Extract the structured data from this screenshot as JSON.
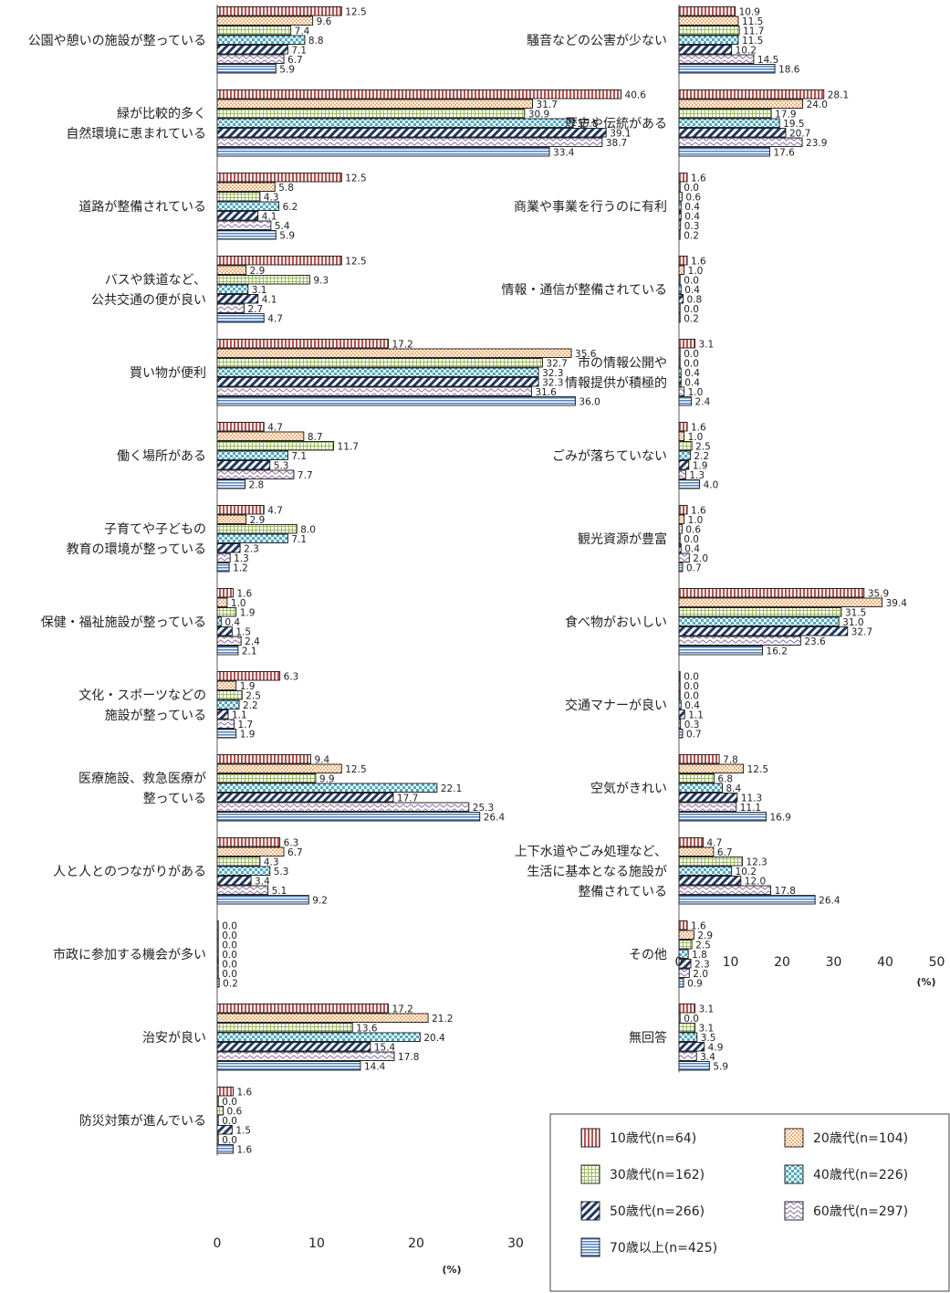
{
  "chart_data": {
    "type": "bar",
    "orientation": "horizontal",
    "unit": "(%)",
    "xlim": [
      0,
      50
    ],
    "ticks": [
      "0",
      "10",
      "20",
      "30",
      "40",
      "50"
    ],
    "series": [
      {
        "name": "10歳代(n=64)",
        "color": "#c0504d",
        "pattern": "vstripe-red"
      },
      {
        "name": "20歳代(n=104)",
        "color": "#f79646",
        "pattern": "dots-orange"
      },
      {
        "name": "30歳代(n=162)",
        "color": "#9bbb59",
        "pattern": "grid-green"
      },
      {
        "name": "40歳代(n=226)",
        "color": "#4bacc6",
        "pattern": "checker-cyan"
      },
      {
        "name": "50歳代(n=266)",
        "color": "#1f3864",
        "pattern": "diag-navy"
      },
      {
        "name": "60歳代(n=297)",
        "color": "#8064a2",
        "pattern": "wave-purple"
      },
      {
        "name": "70歳以上(n=425)",
        "color": "#4f81bd",
        "pattern": "hstripe-blue"
      }
    ],
    "panels": [
      {
        "categories": [
          {
            "label": [
              "公園や憩いの施設が整っている"
            ],
            "values": [
              12.5,
              9.6,
              7.4,
              8.8,
              7.1,
              6.7,
              5.9
            ]
          },
          {
            "label": [
              "緑が比較的多く",
              "自然環境に恵まれている"
            ],
            "values": [
              40.6,
              31.7,
              30.9,
              35.8,
              39.1,
              38.7,
              33.4
            ]
          },
          {
            "label": [
              "道路が整備されている"
            ],
            "values": [
              12.5,
              5.8,
              4.3,
              6.2,
              4.1,
              5.4,
              5.9
            ]
          },
          {
            "label": [
              "バスや鉄道など、",
              "公共交通の便が良い"
            ],
            "values": [
              12.5,
              2.9,
              9.3,
              3.1,
              4.1,
              2.7,
              4.7
            ]
          },
          {
            "label": [
              "買い物が便利"
            ],
            "values": [
              17.2,
              35.6,
              32.7,
              32.3,
              32.3,
              31.6,
              36.0
            ]
          },
          {
            "label": [
              "働く場所がある"
            ],
            "values": [
              4.7,
              8.7,
              11.7,
              7.1,
              5.3,
              7.7,
              2.8
            ]
          },
          {
            "label": [
              "子育てや子どもの",
              "教育の環境が整っている"
            ],
            "values": [
              4.7,
              2.9,
              8.0,
              7.1,
              2.3,
              1.3,
              1.2
            ]
          },
          {
            "label": [
              "保健・福祉施設が整っている"
            ],
            "values": [
              1.6,
              1.0,
              1.9,
              0.4,
              1.5,
              2.4,
              2.1
            ]
          },
          {
            "label": [
              "文化・スポーツなどの",
              "施設が整っている"
            ],
            "values": [
              6.3,
              1.9,
              2.5,
              2.2,
              1.1,
              1.7,
              1.9
            ]
          },
          {
            "label": [
              "医療施設、救急医療が",
              "整っている"
            ],
            "values": [
              9.4,
              12.5,
              9.9,
              22.1,
              17.7,
              25.3,
              26.4
            ]
          },
          {
            "label": [
              "人と人とのつながりがある"
            ],
            "values": [
              6.3,
              6.7,
              4.3,
              5.3,
              3.4,
              5.1,
              9.2
            ]
          },
          {
            "label": [
              "市政に参加する機会が多い"
            ],
            "values": [
              0.0,
              0.0,
              0.0,
              0.0,
              0.0,
              0.0,
              0.2
            ]
          },
          {
            "label": [
              "治安が良い"
            ],
            "values": [
              17.2,
              21.2,
              13.6,
              20.4,
              15.4,
              17.8,
              14.4
            ]
          },
          {
            "label": [
              "防災対策が進んでいる"
            ],
            "values": [
              1.6,
              0.0,
              0.6,
              0.0,
              1.5,
              0.0,
              1.6
            ]
          }
        ]
      },
      {
        "categories": [
          {
            "label": [
              "騒音などの公害が少ない"
            ],
            "values": [
              10.9,
              11.5,
              11.7,
              11.5,
              10.2,
              14.5,
              18.6
            ]
          },
          {
            "label": [
              "歴史や伝統がある"
            ],
            "values": [
              28.1,
              24.0,
              17.9,
              19.5,
              20.7,
              23.9,
              17.6
            ]
          },
          {
            "label": [
              "商業や事業を行うのに有利"
            ],
            "values": [
              1.6,
              0.0,
              0.6,
              0.4,
              0.4,
              0.3,
              0.2
            ]
          },
          {
            "label": [
              "情報・通信が整備されている"
            ],
            "values": [
              1.6,
              1.0,
              0.0,
              0.4,
              0.8,
              0.0,
              0.2
            ]
          },
          {
            "label": [
              "市の情報公開や",
              "情報提供が積極的"
            ],
            "values": [
              3.1,
              0.0,
              0.0,
              0.4,
              0.4,
              1.0,
              2.4
            ]
          },
          {
            "label": [
              "ごみが落ちていない"
            ],
            "values": [
              1.6,
              1.0,
              2.5,
              2.2,
              1.9,
              1.3,
              4.0
            ]
          },
          {
            "label": [
              "観光資源が豊富"
            ],
            "values": [
              1.6,
              1.0,
              0.6,
              0.0,
              0.4,
              2.0,
              0.7
            ]
          },
          {
            "label": [
              "食べ物がおいしい"
            ],
            "values": [
              35.9,
              39.4,
              31.5,
              31.0,
              32.7,
              23.6,
              16.2
            ]
          },
          {
            "label": [
              "交通マナーが良い"
            ],
            "values": [
              0.0,
              0.0,
              0.0,
              0.4,
              1.1,
              0.3,
              0.7
            ]
          },
          {
            "label": [
              "空気がきれい"
            ],
            "values": [
              7.8,
              12.5,
              6.8,
              8.4,
              11.3,
              11.1,
              16.9
            ]
          },
          {
            "label": [
              "上下水道やごみ処理など、",
              "生活に基本となる施設が",
              "整備されている"
            ],
            "values": [
              4.7,
              6.7,
              12.3,
              10.2,
              12.0,
              17.8,
              26.4
            ]
          },
          {
            "label": [
              "その他"
            ],
            "values": [
              1.6,
              2.9,
              2.5,
              1.8,
              2.3,
              2.0,
              0.9
            ]
          },
          {
            "label": [
              "無回答"
            ],
            "values": [
              3.1,
              0.0,
              3.1,
              3.5,
              4.9,
              3.4,
              5.9
            ]
          }
        ]
      }
    ],
    "legend": {
      "placement": "bottom-right"
    }
  }
}
